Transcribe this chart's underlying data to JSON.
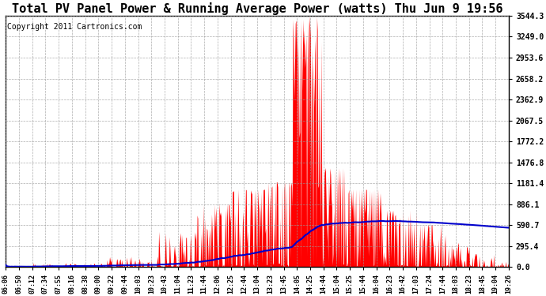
{
  "title": "Total PV Panel Power & Running Average Power (watts) Thu Jun 9 19:56",
  "copyright": "Copyright 2011 Cartronics.com",
  "y_max": 3544.3,
  "y_min": 0.0,
  "y_ticks": [
    0.0,
    295.4,
    590.7,
    886.1,
    1181.4,
    1476.8,
    1772.2,
    2067.5,
    2362.9,
    2658.2,
    2953.6,
    3249.0,
    3544.3
  ],
  "x_labels": [
    "06:06",
    "06:50",
    "07:12",
    "07:34",
    "07:55",
    "08:16",
    "08:38",
    "09:00",
    "09:22",
    "09:44",
    "10:03",
    "10:23",
    "10:43",
    "11:04",
    "11:23",
    "11:44",
    "12:06",
    "12:25",
    "12:44",
    "13:04",
    "13:23",
    "13:45",
    "14:05",
    "14:25",
    "14:44",
    "15:04",
    "15:25",
    "15:44",
    "16:04",
    "16:23",
    "16:42",
    "17:03",
    "17:24",
    "17:44",
    "18:03",
    "18:23",
    "18:45",
    "19:04",
    "19:26"
  ],
  "background_color": "#ffffff",
  "fill_color": "#ff0000",
  "line_color": "#0000cc",
  "grid_color": "#999999",
  "title_fontsize": 11,
  "copyright_fontsize": 7
}
